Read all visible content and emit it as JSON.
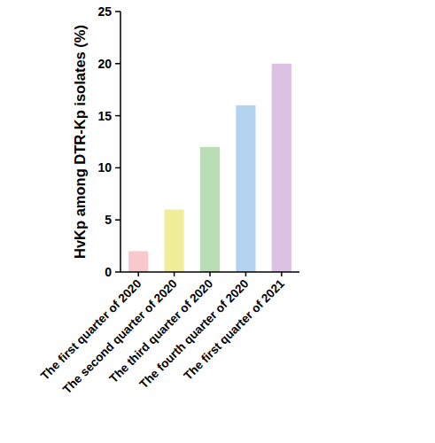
{
  "chart_data": {
    "type": "bar",
    "y_label": "HvKp among DTR-Kp isolates (%)",
    "categories": [
      "The first quarter of 2020",
      "The second quarter of 2020",
      "The third quarter of 2020",
      "The fourth quarter of 2020",
      "The first quarter of 2021"
    ],
    "values": [
      2,
      6,
      12,
      16,
      20
    ],
    "colors": [
      "#f9c8cc",
      "#f1ee9b",
      "#b9ddb5",
      "#b4d3ef",
      "#dcc1e4"
    ],
    "ylim": [
      0,
      25
    ],
    "yticks": [
      0,
      5,
      10,
      15,
      20,
      25
    ],
    "grid": false
  }
}
